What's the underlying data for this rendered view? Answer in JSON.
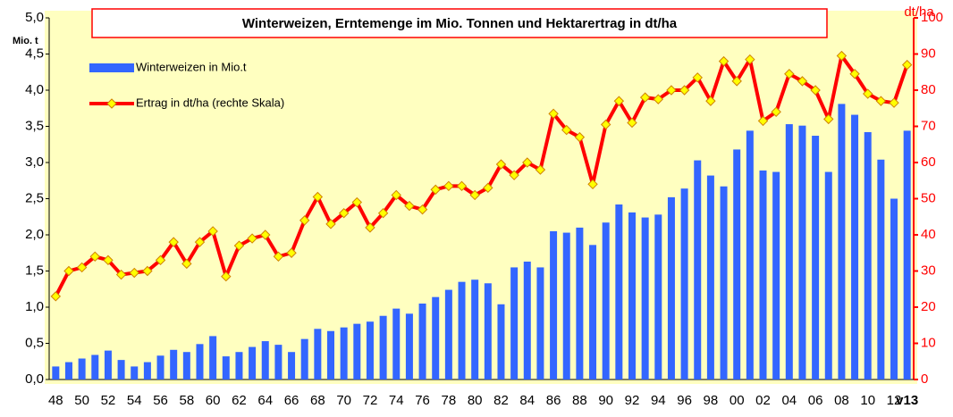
{
  "chart_data": {
    "type": "bar_line",
    "title": "Winterweizen, Erntemenge im Mio. Tonnen und Hektarertrag in dt/ha",
    "y_label": "Mio. t",
    "y2_label": "dt/ha",
    "categories": [
      "48",
      null,
      "50",
      null,
      "52",
      null,
      "54",
      null,
      "56",
      null,
      "58",
      null,
      "60",
      null,
      "62",
      null,
      "64",
      null,
      "66",
      null,
      "68",
      null,
      "70",
      null,
      "72",
      null,
      "74",
      null,
      "76",
      null,
      "78",
      null,
      "80",
      null,
      "82",
      null,
      "84",
      null,
      "86",
      null,
      "88",
      null,
      "90",
      null,
      "92",
      null,
      "94",
      null,
      "96",
      null,
      "98",
      null,
      "00",
      null,
      "02",
      null,
      "04",
      null,
      "06",
      null,
      "08",
      null,
      "10",
      null,
      "12",
      "v13"
    ],
    "series": [
      {
        "name": "Winterweizen in Mio.t",
        "type": "bar",
        "color": "#3366ff",
        "values": [
          0.18,
          0.24,
          0.29,
          0.34,
          0.4,
          0.27,
          0.18,
          0.24,
          0.33,
          0.41,
          0.38,
          0.49,
          0.6,
          0.32,
          0.38,
          0.45,
          0.53,
          0.48,
          0.38,
          0.56,
          0.7,
          0.67,
          0.72,
          0.77,
          0.8,
          0.88,
          0.98,
          0.91,
          1.05,
          1.14,
          1.24,
          1.35,
          1.38,
          1.33,
          1.04,
          1.55,
          1.63,
          1.55,
          2.05,
          2.03,
          2.1,
          1.86,
          2.17,
          2.42,
          2.31,
          2.24,
          2.28,
          2.52,
          2.64,
          3.03,
          2.82,
          2.67,
          3.18,
          3.44,
          2.89,
          2.87,
          3.53,
          3.51,
          3.37,
          2.87,
          3.81,
          3.66,
          3.42,
          3.04,
          2.5,
          3.44
        ]
      },
      {
        "name": "Ertrag in dt/ha (rechte Skala)",
        "type": "line",
        "axis": "y2",
        "color": "#ff0000",
        "marker_color": "#ffff00",
        "values": [
          23,
          30,
          31,
          34,
          33,
          29,
          29.5,
          30,
          33,
          38,
          32,
          38,
          41,
          28.5,
          37,
          39,
          40,
          34,
          35,
          44,
          50.5,
          43,
          46,
          49,
          42,
          46,
          51,
          48,
          47,
          52.5,
          53.5,
          53.5,
          51,
          53,
          59.5,
          56.5,
          60,
          58,
          73.5,
          69,
          67,
          54,
          70.5,
          77,
          71,
          78,
          77.5,
          80,
          80,
          83.5,
          77,
          88,
          82.5,
          88.5,
          71.5,
          74,
          84.5,
          82.5,
          80,
          72,
          89.5,
          84.5,
          79,
          77,
          76.5,
          87
        ]
      }
    ],
    "ylim": [
      0,
      5
    ],
    "yticks": [
      {
        "value": 0,
        "label": "0,0"
      },
      {
        "value": 0.5,
        "label": "0,5"
      },
      {
        "value": 1,
        "label": "1,0"
      },
      {
        "value": 1.5,
        "label": "1,5"
      },
      {
        "value": 2,
        "label": "2,0"
      },
      {
        "value": 2.5,
        "label": "2,5"
      },
      {
        "value": 3,
        "label": "3,0"
      },
      {
        "value": 3.5,
        "label": "3,5"
      },
      {
        "value": 4,
        "label": "4,0"
      },
      {
        "value": 4.5,
        "label": "4,5"
      },
      {
        "value": 5,
        "label": "5,0"
      }
    ],
    "y2lim": [
      0,
      100
    ],
    "y2ticks": [
      0,
      10,
      20,
      30,
      40,
      50,
      60,
      70,
      80,
      90,
      100
    ],
    "y2_color": "#ff0000",
    "background": "#ffffc0",
    "legend": "top-left"
  }
}
